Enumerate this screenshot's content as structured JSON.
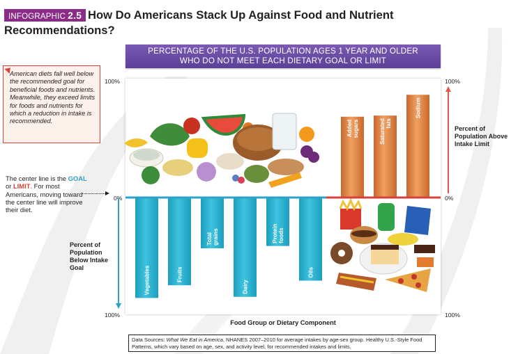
{
  "header": {
    "badge_prefix": "INFOGRAPHIC",
    "badge_number": "2.5",
    "title": "How Do Americans Stack Up Against Food and Nutrient Recommendations?"
  },
  "banner": {
    "line1": "PERCENTAGE OF THE U.S. POPULATION AGES 1 YEAR AND OLDER",
    "line2": "WHO DO NOT MEET EACH DIETARY GOAL OR LIMIT"
  },
  "note": {
    "text": "American diets fall well below the recommended goal for beneficial foods and nutrients. Meanwhile, they exceed limits for foods and nutrients for which a reduction in intake is recommended."
  },
  "center_note": {
    "part1": "The center line is the ",
    "goal": "GOAL",
    "part2": " or ",
    "limit": "LIMIT",
    "part3": ". For most Americans, moving toward the center line will improve their diet."
  },
  "axis_labels": {
    "below": "Percent of Population Below Intake Goal",
    "above": "Percent of Population Above Intake Limit",
    "tick_top": "100%",
    "tick_center": "0%",
    "tick_bottom": "100%"
  },
  "colors": {
    "below_bar": "#2bb3d1",
    "above_bar": "#e0823f",
    "center_line": "#d6413a",
    "below_axis": "#2ea1c8",
    "above_axis": "#e2574c",
    "banner": "#6a4aa5",
    "badge": "#8a2c87"
  },
  "chart_data": {
    "type": "bar",
    "title": "PERCENTAGE OF THE U.S. POPULATION AGES 1 YEAR AND OLDER WHO DO NOT MEET EACH DIETARY GOAL OR LIMIT",
    "xlabel": "Food Group or Dietary Component",
    "ylim": [
      -100,
      100
    ],
    "series": [
      {
        "name": "Percent of Population Below Intake Goal",
        "categories": [
          "Vegetables",
          "Fruits",
          "Total grains",
          "Dairy",
          "Protein foods",
          "Oils"
        ],
        "values": [
          87,
          76,
          44,
          86,
          42,
          72
        ]
      },
      {
        "name": "Percent of Population Above Intake Limit",
        "categories": [
          "Added sugars",
          "Saturated fats",
          "Sodium"
        ],
        "values": [
          70,
          71,
          89
        ]
      }
    ]
  },
  "source": {
    "label": "Data Sources: ",
    "italic": "What We Eat in America",
    "rest": ", NHANES 2007–2010 for average intakes by age-sex group. Healthy U.S.-Style Food Patterns, which vary based on age, sex, and activity level, for recommended intakes and limits."
  }
}
